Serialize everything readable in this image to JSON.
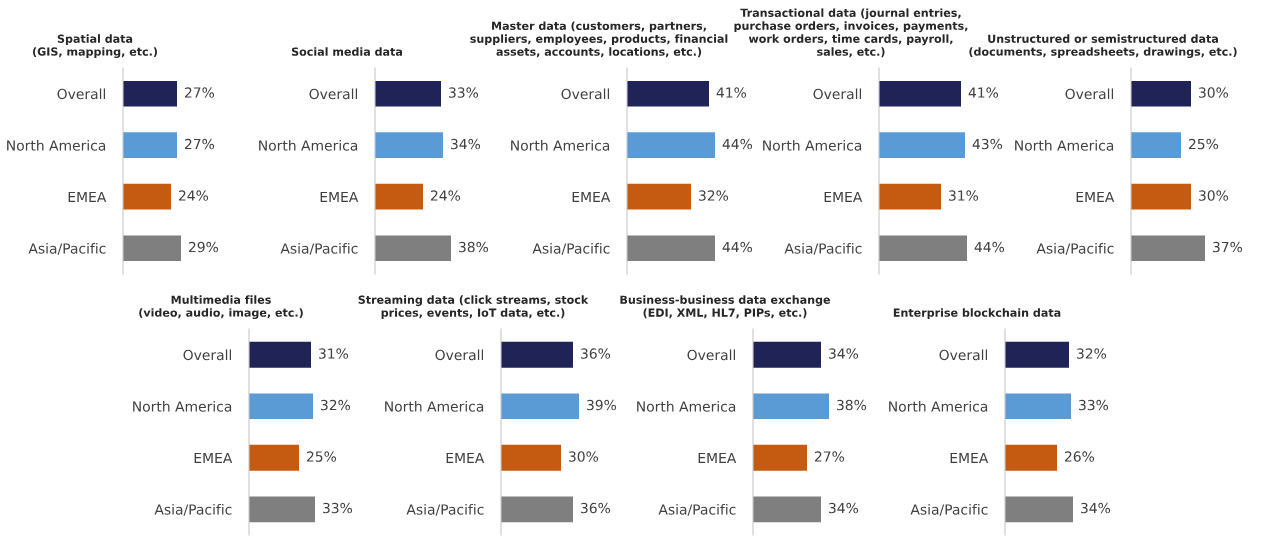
{
  "chart_data": [
    {
      "type": "bar",
      "orientation": "horizontal",
      "title": "Spatial data\n(GIS, mapping, etc.)",
      "categories": [
        "Overall",
        "North America",
        "EMEA",
        "Asia/Pacific"
      ],
      "values": [
        27,
        27,
        24,
        29
      ],
      "value_labels": [
        "27%",
        "27%",
        "24%",
        "29%"
      ],
      "colors": [
        "#1f2356",
        "#5b9bd5",
        "#c55a11",
        "#7f7f7f"
      ],
      "tick_labels": "y"
    },
    {
      "type": "bar",
      "orientation": "horizontal",
      "title": "Social media data",
      "categories": [
        "Overall",
        "North America",
        "EMEA",
        "Asia/Pacific"
      ],
      "values": [
        33,
        34,
        24,
        38
      ],
      "value_labels": [
        "33%",
        "34%",
        "24%",
        "38%"
      ],
      "colors": [
        "#1f2356",
        "#5b9bd5",
        "#c55a11",
        "#7f7f7f"
      ],
      "tick_labels": "y"
    },
    {
      "type": "bar",
      "orientation": "horizontal",
      "title": "Master data (customers, partners,\nsuppliers, employees, products, financial\nassets, accounts, locations, etc.)",
      "categories": [
        "Overall",
        "North America",
        "EMEA",
        "Asia/Pacific"
      ],
      "values": [
        41,
        44,
        32,
        44
      ],
      "value_labels": [
        "41%",
        "44%",
        "32%",
        "44%"
      ],
      "colors": [
        "#1f2356",
        "#5b9bd5",
        "#c55a11",
        "#7f7f7f"
      ],
      "tick_labels": "y"
    },
    {
      "type": "bar",
      "orientation": "horizontal",
      "title": "Transactional data (journal entries,\npurchase orders, invoices, payments,\nwork orders, time cards, payroll,\nsales, etc.)",
      "categories": [
        "Overall",
        "North America",
        "EMEA",
        "Asia/Pacific"
      ],
      "values": [
        41,
        43,
        31,
        44
      ],
      "value_labels": [
        "41%",
        "43%",
        "31%",
        "44%"
      ],
      "colors": [
        "#1f2356",
        "#5b9bd5",
        "#c55a11",
        "#7f7f7f"
      ],
      "tick_labels": "y"
    },
    {
      "type": "bar",
      "orientation": "horizontal",
      "title": "Unstructured or semistructured data\n(documents, spreadsheets, drawings, etc.)",
      "categories": [
        "Overall",
        "North America",
        "EMEA",
        "Asia/Pacific"
      ],
      "values": [
        30,
        25,
        30,
        37
      ],
      "value_labels": [
        "30%",
        "25%",
        "30%",
        "37%"
      ],
      "colors": [
        "#1f2356",
        "#5b9bd5",
        "#c55a11",
        "#7f7f7f"
      ],
      "tick_labels": "y"
    },
    {
      "type": "bar",
      "orientation": "horizontal",
      "title": "Multimedia files\n(video, audio, image, etc.)",
      "categories": [
        "Overall",
        "North America",
        "EMEA",
        "Asia/Pacific"
      ],
      "values": [
        31,
        32,
        25,
        33
      ],
      "value_labels": [
        "31%",
        "32%",
        "25%",
        "33%"
      ],
      "colors": [
        "#1f2356",
        "#5b9bd5",
        "#c55a11",
        "#7f7f7f"
      ],
      "tick_labels": "y"
    },
    {
      "type": "bar",
      "orientation": "horizontal",
      "title": "Streaming data (click streams, stock\nprices, events, IoT data, etc.)",
      "categories": [
        "Overall",
        "North America",
        "EMEA",
        "Asia/Pacific"
      ],
      "values": [
        36,
        39,
        30,
        36
      ],
      "value_labels": [
        "36%",
        "39%",
        "30%",
        "36%"
      ],
      "colors": [
        "#1f2356",
        "#5b9bd5",
        "#c55a11",
        "#7f7f7f"
      ],
      "tick_labels": "y"
    },
    {
      "type": "bar",
      "orientation": "horizontal",
      "title": "Business-business data exchange\n(EDI, XML, HL7, PIPs, etc.)",
      "categories": [
        "Overall",
        "North America",
        "EMEA",
        "Asia/Pacific"
      ],
      "values": [
        34,
        38,
        27,
        34
      ],
      "value_labels": [
        "34%",
        "38%",
        "27%",
        "34%"
      ],
      "colors": [
        "#1f2356",
        "#5b9bd5",
        "#c55a11",
        "#7f7f7f"
      ],
      "tick_labels": "y"
    },
    {
      "type": "bar",
      "orientation": "horizontal",
      "title": "Enterprise blockchain data",
      "categories": [
        "Overall",
        "North America",
        "EMEA",
        "Asia/Pacific"
      ],
      "values": [
        32,
        33,
        26,
        34
      ],
      "value_labels": [
        "32%",
        "33%",
        "26%",
        "34%"
      ],
      "colors": [
        "#1f2356",
        "#5b9bd5",
        "#c55a11",
        "#7f7f7f"
      ],
      "tick_labels": "y"
    }
  ]
}
